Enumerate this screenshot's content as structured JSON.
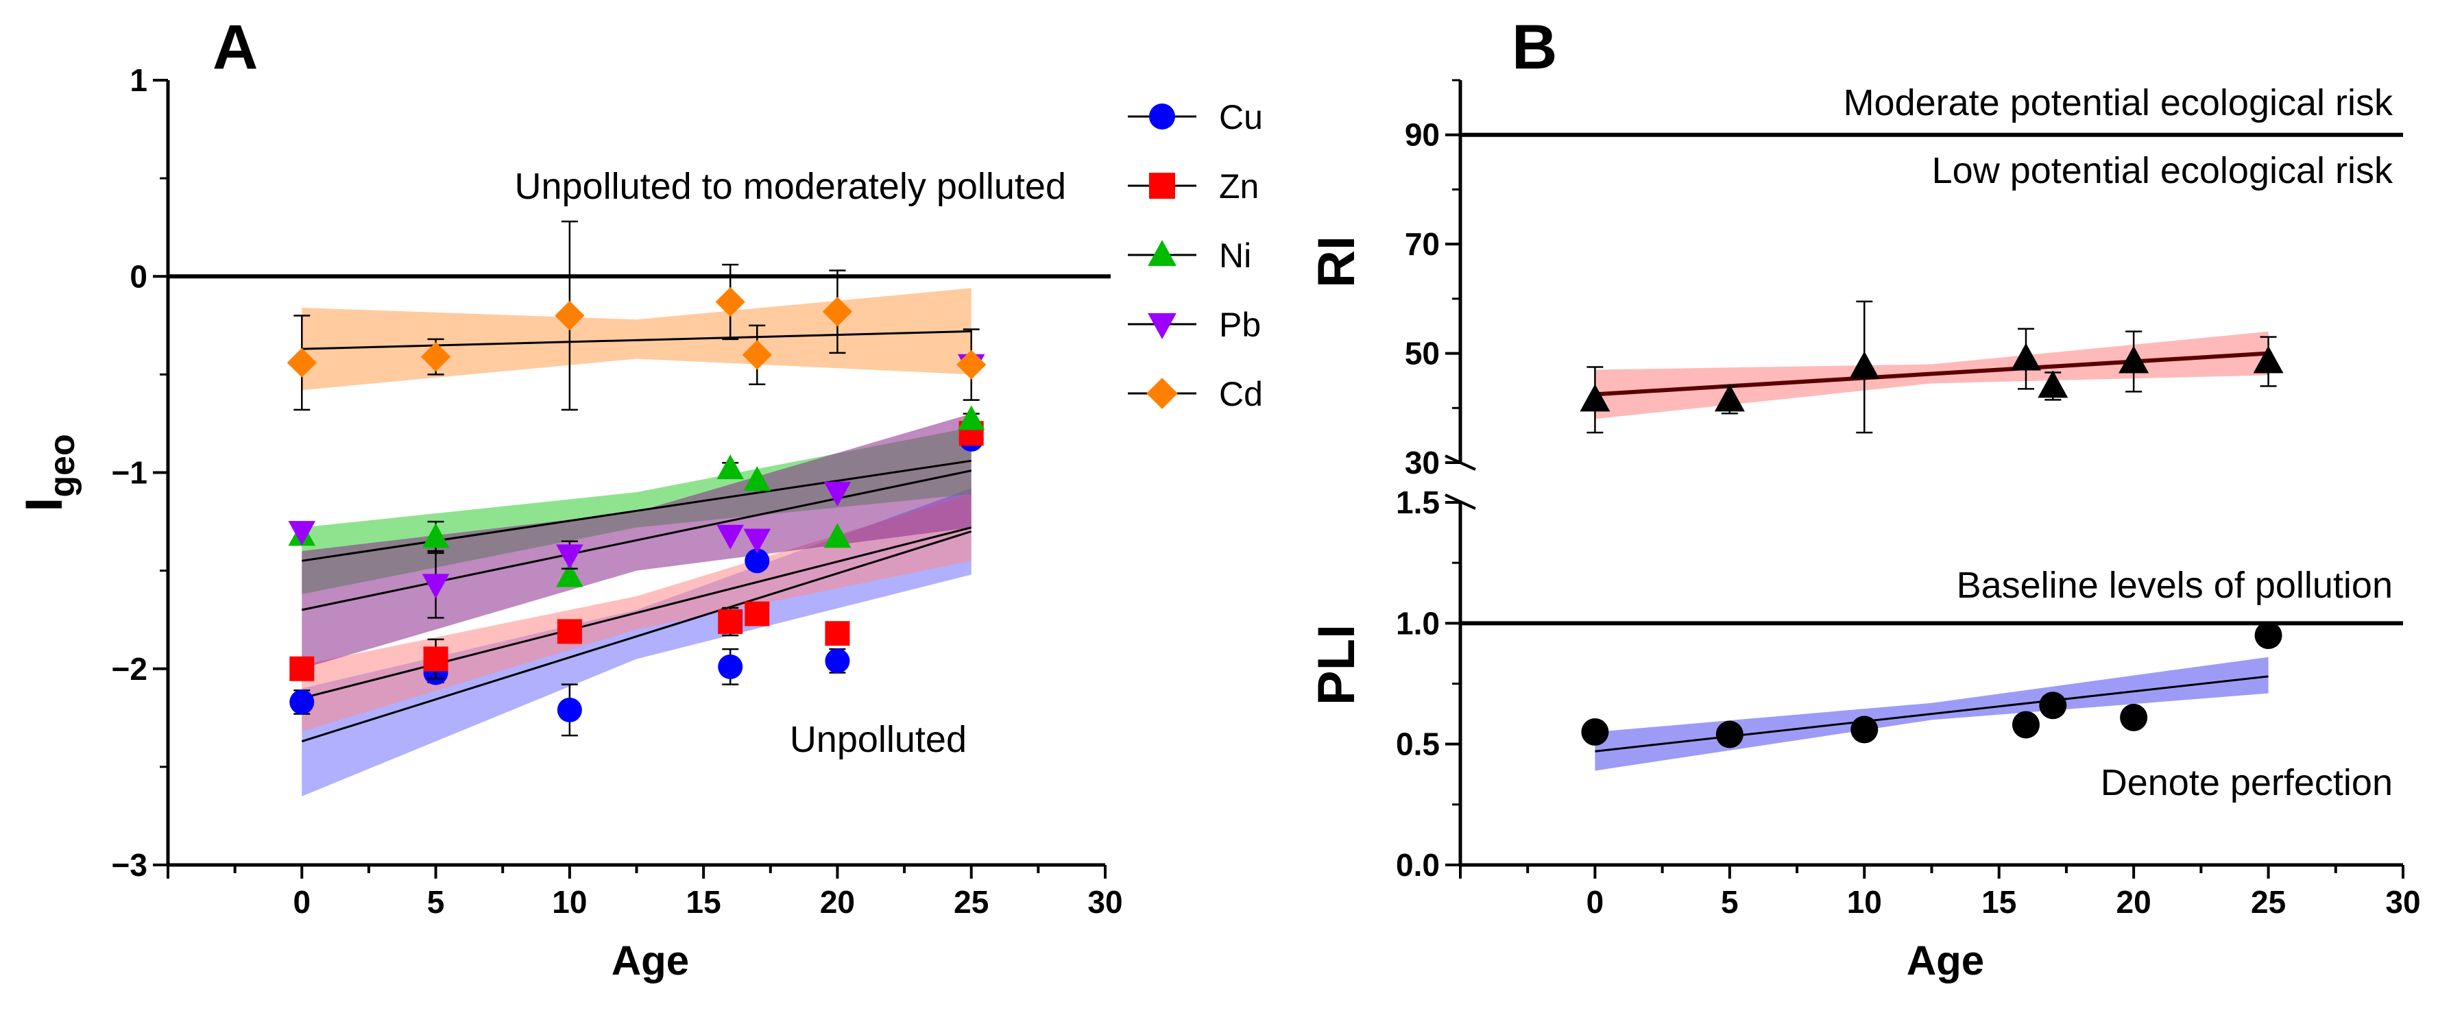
{
  "chart_data": [
    {
      "panel": "A",
      "type": "scatter",
      "ylabel": "I",
      "ylabel_sub": "geo",
      "xlabel": "Age",
      "xlim": [
        -5,
        30
      ],
      "ylim": [
        -3,
        1
      ],
      "x_ticks": [
        "0",
        "5",
        "10",
        "15",
        "20",
        "25",
        "30"
      ],
      "y_ticks": [
        "−3",
        "−2",
        "−1",
        "0",
        "1"
      ],
      "reference_line": 0,
      "annotations": [
        "Unpolluted to moderately polluted",
        "Unpolluted"
      ],
      "legend_position": "right",
      "series": [
        {
          "name": "Cu",
          "marker": "circle",
          "color": "#0000FF",
          "band_color": "#6F6FFF",
          "x": [
            0,
            5,
            10,
            16,
            17,
            20,
            25
          ],
          "y": [
            -2.17,
            -2.02,
            -2.21,
            -1.99,
            -1.45,
            -1.96,
            -0.83
          ],
          "err": [
            0.06,
            0.05,
            0.13,
            0.09,
            0.0,
            0.06,
            0.03
          ],
          "fit": [
            [
              0,
              -2.37
            ],
            [
              25,
              -1.3
            ]
          ],
          "band": [
            [
              0,
              -2.65,
              -2.1
            ],
            [
              12.5,
              -1.95,
              -1.7
            ],
            [
              25,
              -1.52,
              -1.08
            ]
          ]
        },
        {
          "name": "Zn",
          "marker": "square",
          "color": "#FF0000",
          "band_color": "#FF8A8A",
          "x": [
            0,
            5,
            10,
            16,
            17,
            20,
            25
          ],
          "y": [
            -2.0,
            -1.95,
            -1.81,
            -1.76,
            -1.72,
            -1.82,
            -0.8
          ],
          "err": [
            0.0,
            0.1,
            0.0,
            0.07,
            0.0,
            0.0,
            0.03
          ],
          "fit": [
            [
              0,
              -2.15
            ],
            [
              25,
              -1.28
            ]
          ],
          "band": [
            [
              0,
              -2.32,
              -1.98
            ],
            [
              12.5,
              -1.8,
              -1.63
            ],
            [
              25,
              -1.45,
              -1.11
            ]
          ]
        },
        {
          "name": "Ni",
          "marker": "triangle-up",
          "color": "#00BB00",
          "band_color": "#33CC33",
          "x": [
            0,
            5,
            10,
            16,
            17,
            20,
            25
          ],
          "y": [
            -1.32,
            -1.33,
            -1.53,
            -0.98,
            -1.04,
            -1.33,
            -0.73
          ],
          "err": [
            0.03,
            0.08,
            0.0,
            0.03,
            0.0,
            0.0,
            0.03
          ],
          "fit": [
            [
              0,
              -1.45
            ],
            [
              25,
              -0.94
            ]
          ],
          "band": [
            [
              0,
              -1.62,
              -1.28
            ],
            [
              12.5,
              -1.28,
              -1.1
            ],
            [
              25,
              -1.11,
              -0.77
            ]
          ]
        },
        {
          "name": "Pb",
          "marker": "triangle-down",
          "color": "#9B00FF",
          "band_color": "#8A2A8A",
          "x": [
            0,
            5,
            10,
            16,
            17,
            20,
            25
          ],
          "y": [
            -1.3,
            -1.57,
            -1.42,
            -1.32,
            -1.34,
            -1.1,
            -0.45
          ],
          "err": [
            0.0,
            0.17,
            0.07,
            0.0,
            0.0,
            0.0,
            0.0
          ],
          "fit": [
            [
              0,
              -1.7
            ],
            [
              25,
              -0.99
            ]
          ],
          "band": [
            [
              0,
              -2.0,
              -1.4
            ],
            [
              12.5,
              -1.5,
              -1.2
            ],
            [
              25,
              -1.28,
              -0.7
            ]
          ]
        },
        {
          "name": "Cd",
          "marker": "diamond",
          "color": "#FF8000",
          "band_color": "#FFA050",
          "x": [
            0,
            5,
            10,
            16,
            17,
            20,
            25
          ],
          "y": [
            -0.44,
            -0.41,
            -0.2,
            -0.13,
            -0.4,
            -0.18,
            -0.45
          ],
          "err": [
            0.24,
            0.09,
            0.48,
            0.19,
            0.15,
            0.21,
            0.18
          ],
          "fit": [
            [
              0,
              -0.37
            ],
            [
              25,
              -0.28
            ]
          ],
          "band": [
            [
              0,
              -0.58,
              -0.16
            ],
            [
              12.5,
              -0.42,
              -0.22
            ],
            [
              25,
              -0.5,
              -0.06
            ]
          ]
        }
      ]
    },
    {
      "panel": "B-RI",
      "type": "scatter",
      "ylabel": "RI",
      "xlim": [
        -5,
        30
      ],
      "ylim": [
        30,
        100
      ],
      "y_ticks": [
        "30",
        "50",
        "70",
        "90"
      ],
      "reference_line": 90,
      "annotations": [
        "Moderate potential ecological risk",
        "Low potential ecological risk"
      ],
      "series": [
        {
          "marker": "triangle-up",
          "color": "#000000",
          "band_color": "#FF8080",
          "line_color": "#5A0000",
          "x": [
            0,
            5,
            10,
            16,
            17,
            20,
            25
          ],
          "y": [
            41.5,
            41.5,
            47.5,
            49.0,
            44.0,
            48.5,
            48.5
          ],
          "err": [
            6.0,
            2.5,
            12.0,
            5.5,
            2.5,
            5.5,
            4.5
          ],
          "fit": [
            [
              0,
              42.5
            ],
            [
              25,
              50.0
            ]
          ],
          "band": [
            [
              0,
              38.0,
              47.0
            ],
            [
              12.5,
              44.5,
              48.0
            ],
            [
              25,
              46.0,
              54.0
            ]
          ]
        }
      ]
    },
    {
      "panel": "B-PLI",
      "type": "scatter",
      "ylabel": "PLI",
      "xlabel": "Age",
      "xlim": [
        -5,
        30
      ],
      "ylim": [
        0,
        1.5
      ],
      "x_ticks": [
        "0",
        "5",
        "10",
        "15",
        "20",
        "25",
        "30"
      ],
      "y_ticks": [
        "0.0",
        "0.5",
        "1.0",
        "1.5"
      ],
      "reference_line": 1.0,
      "annotations": [
        "Baseline levels of pollution",
        "Denote perfection"
      ],
      "series": [
        {
          "marker": "circle",
          "color": "#000000",
          "band_color": "#4A4AF0",
          "x": [
            0,
            5,
            10,
            16,
            17,
            20,
            25
          ],
          "y": [
            0.55,
            0.54,
            0.56,
            0.58,
            0.66,
            0.61,
            0.95
          ],
          "err": [
            0.0,
            0.0,
            0.0,
            0.0,
            0.0,
            0.0,
            0.0
          ],
          "fit": [
            [
              0,
              0.47
            ],
            [
              25,
              0.78
            ]
          ],
          "band": [
            [
              0,
              0.39,
              0.55
            ],
            [
              12.5,
              0.6,
              0.67
            ],
            [
              25,
              0.71,
              0.86
            ]
          ]
        }
      ]
    }
  ],
  "panel_labels": [
    "A",
    "B"
  ]
}
